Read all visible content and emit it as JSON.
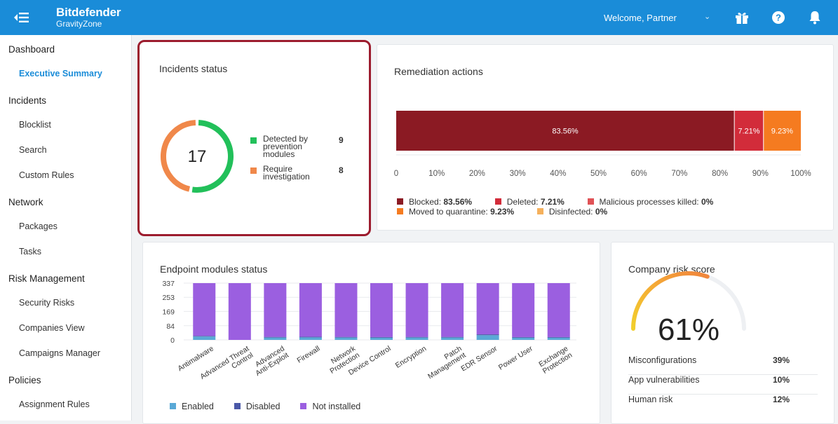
{
  "header": {
    "brand_name": "Bitdefender",
    "brand_sub": "GravityZone",
    "welcome": "Welcome, Partner",
    "bg_color": "#1a8cd8"
  },
  "sidebar": {
    "sections": [
      {
        "label": "Dashboard",
        "items": [
          {
            "label": "Executive Summary",
            "active": true
          }
        ]
      },
      {
        "label": "Incidents",
        "items": [
          {
            "label": "Blocklist"
          },
          {
            "label": "Search"
          },
          {
            "label": "Custom Rules"
          }
        ]
      },
      {
        "label": "Network",
        "items": [
          {
            "label": "Packages"
          },
          {
            "label": "Tasks"
          }
        ]
      },
      {
        "label": "Risk Management",
        "items": [
          {
            "label": "Security Risks"
          },
          {
            "label": "Companies View"
          },
          {
            "label": "Campaigns Manager"
          }
        ]
      },
      {
        "label": "Policies",
        "items": [
          {
            "label": "Assignment Rules"
          }
        ]
      }
    ]
  },
  "incidents": {
    "title": "Incidents status",
    "total": "17",
    "items": [
      {
        "label_lines": [
          "Detected by",
          "prevention",
          "modules"
        ],
        "value": 9,
        "color": "#22c05a"
      },
      {
        "label_lines": [
          "Require",
          "investigation"
        ],
        "value": 8,
        "color": "#f0884a"
      }
    ]
  },
  "remediation": {
    "title": "Remediation actions",
    "segments": [
      {
        "name": "Blocked",
        "value": 83.56,
        "label": "83.56%",
        "color": "#8b1a23"
      },
      {
        "name": "Deleted",
        "value": 7.21,
        "label": "7.21%",
        "color": "#d22c3a"
      },
      {
        "name": "Moved to quarantine",
        "value": 9.23,
        "label": "9.23%",
        "color": "#f57b20"
      }
    ],
    "axis_ticks": [
      "0",
      "10%",
      "20%",
      "30%",
      "40%",
      "50%",
      "60%",
      "70%",
      "80%",
      "90%",
      "100%"
    ],
    "legend_row1": [
      {
        "name": "Blocked:",
        "value": "83.56%",
        "color": "#8b1a23"
      },
      {
        "name": "Deleted:",
        "value": "7.21%",
        "color": "#d22c3a"
      },
      {
        "name": "Malicious processes killed:",
        "value": "0%",
        "color": "#e05256"
      }
    ],
    "legend_row2": [
      {
        "name": "Moved to quarantine:",
        "value": "9.23%",
        "color": "#f57b20"
      },
      {
        "name": "Disinfected:",
        "value": "0%",
        "color": "#f5b05c"
      }
    ]
  },
  "endpoint": {
    "title": "Endpoint modules status",
    "legend": [
      {
        "name": "Enabled",
        "color": "#5aa9d6"
      },
      {
        "name": "Disabled",
        "color": "#4a58a8"
      },
      {
        "name": "Not installed",
        "color": "#9b5fe0"
      }
    ]
  },
  "risk": {
    "title": "Company risk score",
    "score": "61%",
    "score_value": 61,
    "rows": [
      {
        "label": "Misconfigurations",
        "value": "39%"
      },
      {
        "label": "App vulnerabilities",
        "value": "10%"
      },
      {
        "label": "Human risk",
        "value": "12%"
      }
    ]
  },
  "chart_data": {
    "type": "bar",
    "stacked": true,
    "categories": [
      "Antimalware",
      "Advanced Threat Control",
      "Advanced Anti-Exploit",
      "Firewall",
      "Network Protection",
      "Device Control",
      "Encryption",
      "Patch Management",
      "EDR Sensor",
      "Power User",
      "Exchange Protection"
    ],
    "category_label_lines": [
      [
        "Antimalware"
      ],
      [
        "Advanced Threat",
        "Control"
      ],
      [
        "Advanced",
        "Anti-Exploit"
      ],
      [
        "Firewall"
      ],
      [
        "Network",
        "Protection"
      ],
      [
        "Device Control"
      ],
      [
        "Encryption"
      ],
      [
        "Patch",
        "Management"
      ],
      [
        "EDR Sensor"
      ],
      [
        "Power User"
      ],
      [
        "Exchange",
        "Protection"
      ]
    ],
    "series": [
      {
        "name": "Enabled",
        "values": [
          20,
          0,
          14,
          15,
          14,
          13,
          14,
          14,
          28,
          13,
          13
        ]
      },
      {
        "name": "Disabled",
        "values": [
          4,
          0,
          4,
          4,
          4,
          4,
          4,
          4,
          5,
          4,
          4
        ]
      },
      {
        "name": "Not installed",
        "values": [
          313,
          337,
          319,
          318,
          319,
          320,
          319,
          319,
          304,
          320,
          320
        ]
      }
    ],
    "yticks": [
      "337",
      "253",
      "169",
      "84",
      "0"
    ],
    "ylim": [
      0,
      337
    ]
  }
}
